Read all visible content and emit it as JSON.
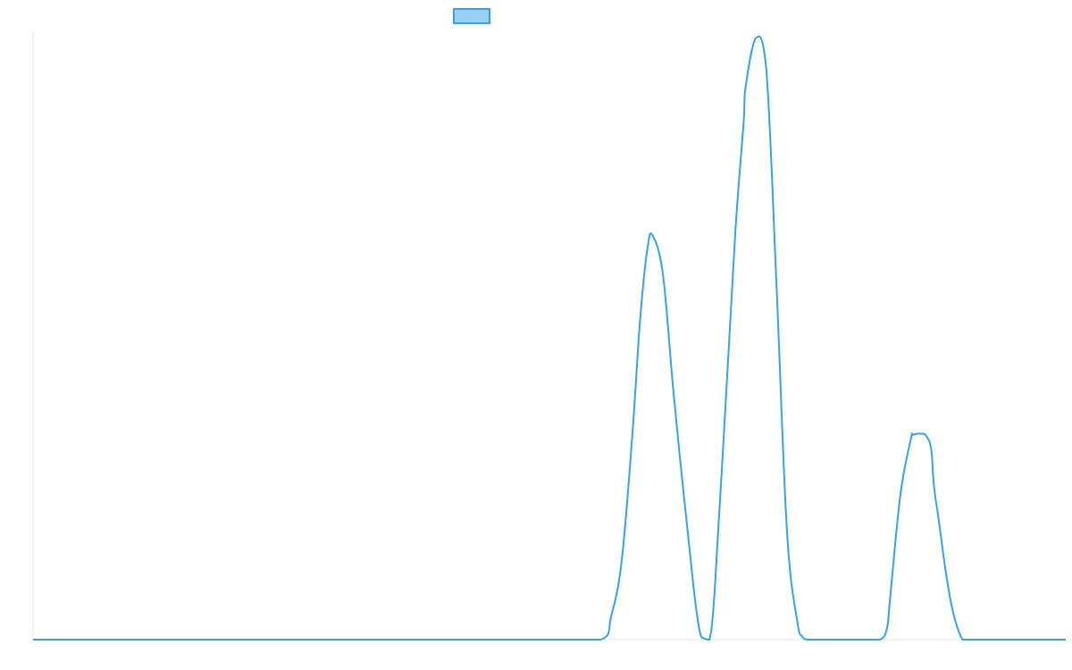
{
  "chart_data": {
    "type": "line",
    "title": "",
    "xlabel": "",
    "ylabel": "",
    "legend": {
      "position": "top-center",
      "fill_color": "#9ad0f5",
      "border_color": "#36a2eb"
    },
    "grid": false,
    "colors": {
      "line": "#36a2eb",
      "axis": "#e6e6e6"
    },
    "xlim": [
      0,
      100
    ],
    "ylim": [
      0,
      100
    ],
    "series": [
      {
        "x": [
          0,
          10,
          20,
          30,
          40,
          50,
          55,
          56,
          57,
          58,
          58.8,
          59.5,
          60,
          61,
          62,
          63,
          64,
          64.6,
          65,
          65.5,
          66,
          67,
          68,
          68.8,
          69,
          70,
          71,
          72,
          73,
          74,
          74.5,
          75,
          76,
          80,
          82,
          82.7,
          83,
          84,
          85,
          85.2,
          86,
          86.5,
          87,
          87.5,
          90,
          95,
          100
        ],
        "y": [
          0,
          0,
          0,
          0,
          0,
          0,
          0,
          4,
          13,
          33,
          53,
          64.5,
          66.5,
          60,
          41,
          24,
          8,
          1,
          0.2,
          0,
          8,
          37,
          67,
          85,
          91,
          99,
          94,
          58,
          18,
          3,
          0.5,
          0,
          0,
          0,
          0,
          2,
          7,
          24,
          33,
          33.7,
          33.9,
          33.5,
          31,
          22,
          0,
          0,
          0
        ]
      }
    ]
  }
}
